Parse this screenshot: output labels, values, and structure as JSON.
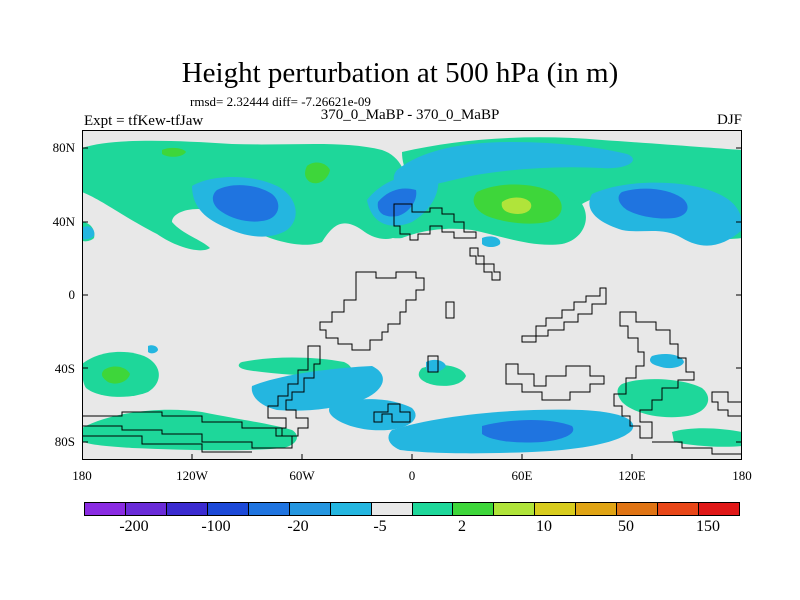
{
  "header": {
    "title": "Height perturbation at 500 hPa (in m)",
    "stats": "rmsd= 2.32444 diff= -7.26621e-09",
    "left_label": "Expt = tfKew-tfJaw",
    "center_label": "370_0_MaBP - 370_0_MaBP",
    "right_label": "DJF"
  },
  "map": {
    "projection": "cylindrical equidistant",
    "lon_range": [
      -180,
      180
    ],
    "lat_range": [
      -90,
      90
    ],
    "background_color": "#e8e8e8",
    "y_tick_labels": [
      "80N",
      "40N",
      "0",
      "40S",
      "80S"
    ],
    "x_tick_labels": [
      "180",
      "120W",
      "60W",
      "0",
      "60E",
      "120E",
      "180"
    ]
  },
  "colorbar": {
    "colors": [
      "#8a2be2",
      "#6a2bd8",
      "#3b2bd0",
      "#1c49d8",
      "#1f74e0",
      "#2596e0",
      "#24b6e0",
      "#e8e8e8",
      "#1ed79a",
      "#3ed63a",
      "#b0e43a",
      "#d8cc1e",
      "#e0a414",
      "#e07414",
      "#e84618",
      "#e01818"
    ],
    "labels": [
      "-200",
      "-100",
      "-20",
      "-5",
      "2",
      "10",
      "50",
      "150"
    ]
  }
}
